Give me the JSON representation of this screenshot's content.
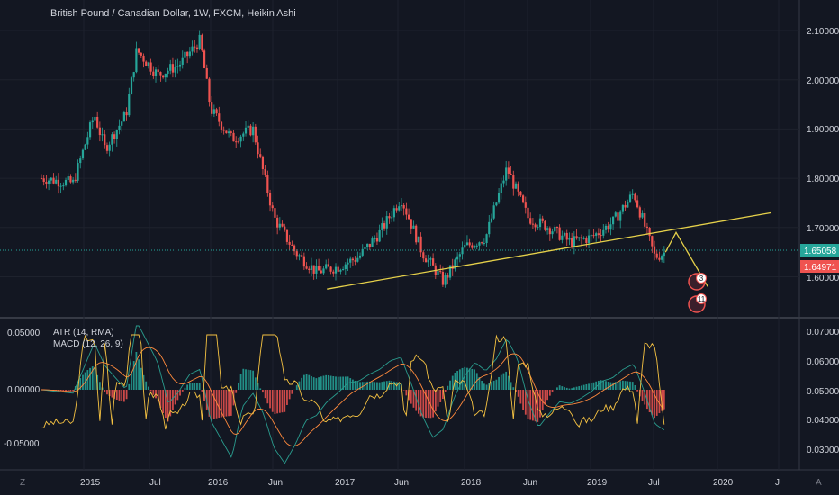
{
  "header": {
    "title": "British Pound / Canadian Dollar, 1W, FXCM, Heikin Ashi"
  },
  "price_axis": {
    "ticks": [
      "2.10000",
      "2.00000",
      "1.90000",
      "1.80000",
      "1.70000",
      "1.60000"
    ],
    "last_price_label": "1.65058",
    "last_price_color": "#26a69a",
    "current_label": "1.64971",
    "current_color": "#ef5350"
  },
  "time_axis": {
    "ticks": [
      "2015",
      "Jul",
      "2016",
      "Jun",
      "2017",
      "Jun",
      "2018",
      "Jun",
      "2019",
      "Jul",
      "2020",
      "J"
    ]
  },
  "badges": [
    "3",
    "11"
  ],
  "indicators": {
    "atr_legend": "ATR (14, RMA)",
    "macd_legend": "MACD (12, 26, 9)",
    "left_ticks": [
      "0.05000",
      "0.00000",
      "-0.05000"
    ],
    "right_ticks": [
      "0.07000",
      "0.06000",
      "0.05000",
      "0.04000",
      "0.03000"
    ]
  },
  "corner_labels": {
    "left": "Z",
    "right": "A"
  },
  "colors": {
    "up": "#26a69a",
    "down": "#ef5350",
    "trendline": "#e6d14a",
    "atr": "#f5c242",
    "macd": "#2a9d8f",
    "signal": "#ff8a3d"
  },
  "chart_data": {
    "type": "candlestick",
    "series": [
      {
        "name": "British Pound / Canadian Dollar, 1W, FXCM, Heikin Ashi",
        "x": [
          "2014-09",
          "2014-12",
          "2015-02",
          "2015-03",
          "2015-05",
          "2015-06",
          "2015-08",
          "2015-10",
          "2015-12",
          "2016-01",
          "2016-03",
          "2016-05",
          "2016-07",
          "2016-09",
          "2016-11",
          "2017-01",
          "2017-03",
          "2017-05",
          "2017-07",
          "2017-09",
          "2017-11",
          "2018-01",
          "2018-03",
          "2018-05",
          "2018-07",
          "2018-09",
          "2018-11",
          "2019-01",
          "2019-03",
          "2019-05",
          "2019-07",
          "2019-08"
        ],
        "values": [
          1.8,
          1.79,
          1.93,
          1.86,
          1.93,
          2.06,
          2.01,
          2.03,
          2.08,
          1.94,
          1.88,
          1.9,
          1.72,
          1.65,
          1.61,
          1.62,
          1.64,
          1.69,
          1.76,
          1.65,
          1.59,
          1.66,
          1.68,
          1.82,
          1.72,
          1.7,
          1.67,
          1.68,
          1.71,
          1.77,
          1.64,
          1.65
        ]
      }
    ],
    "projection": {
      "x": [
        "2019-09",
        "2019-12"
      ],
      "values": [
        1.69,
        1.58
      ]
    },
    "trendline": {
      "x": [
        "2016-12",
        "2020-06"
      ],
      "values": [
        1.575,
        1.73
      ]
    },
    "ylim": [
      1.56,
      2.11
    ]
  }
}
